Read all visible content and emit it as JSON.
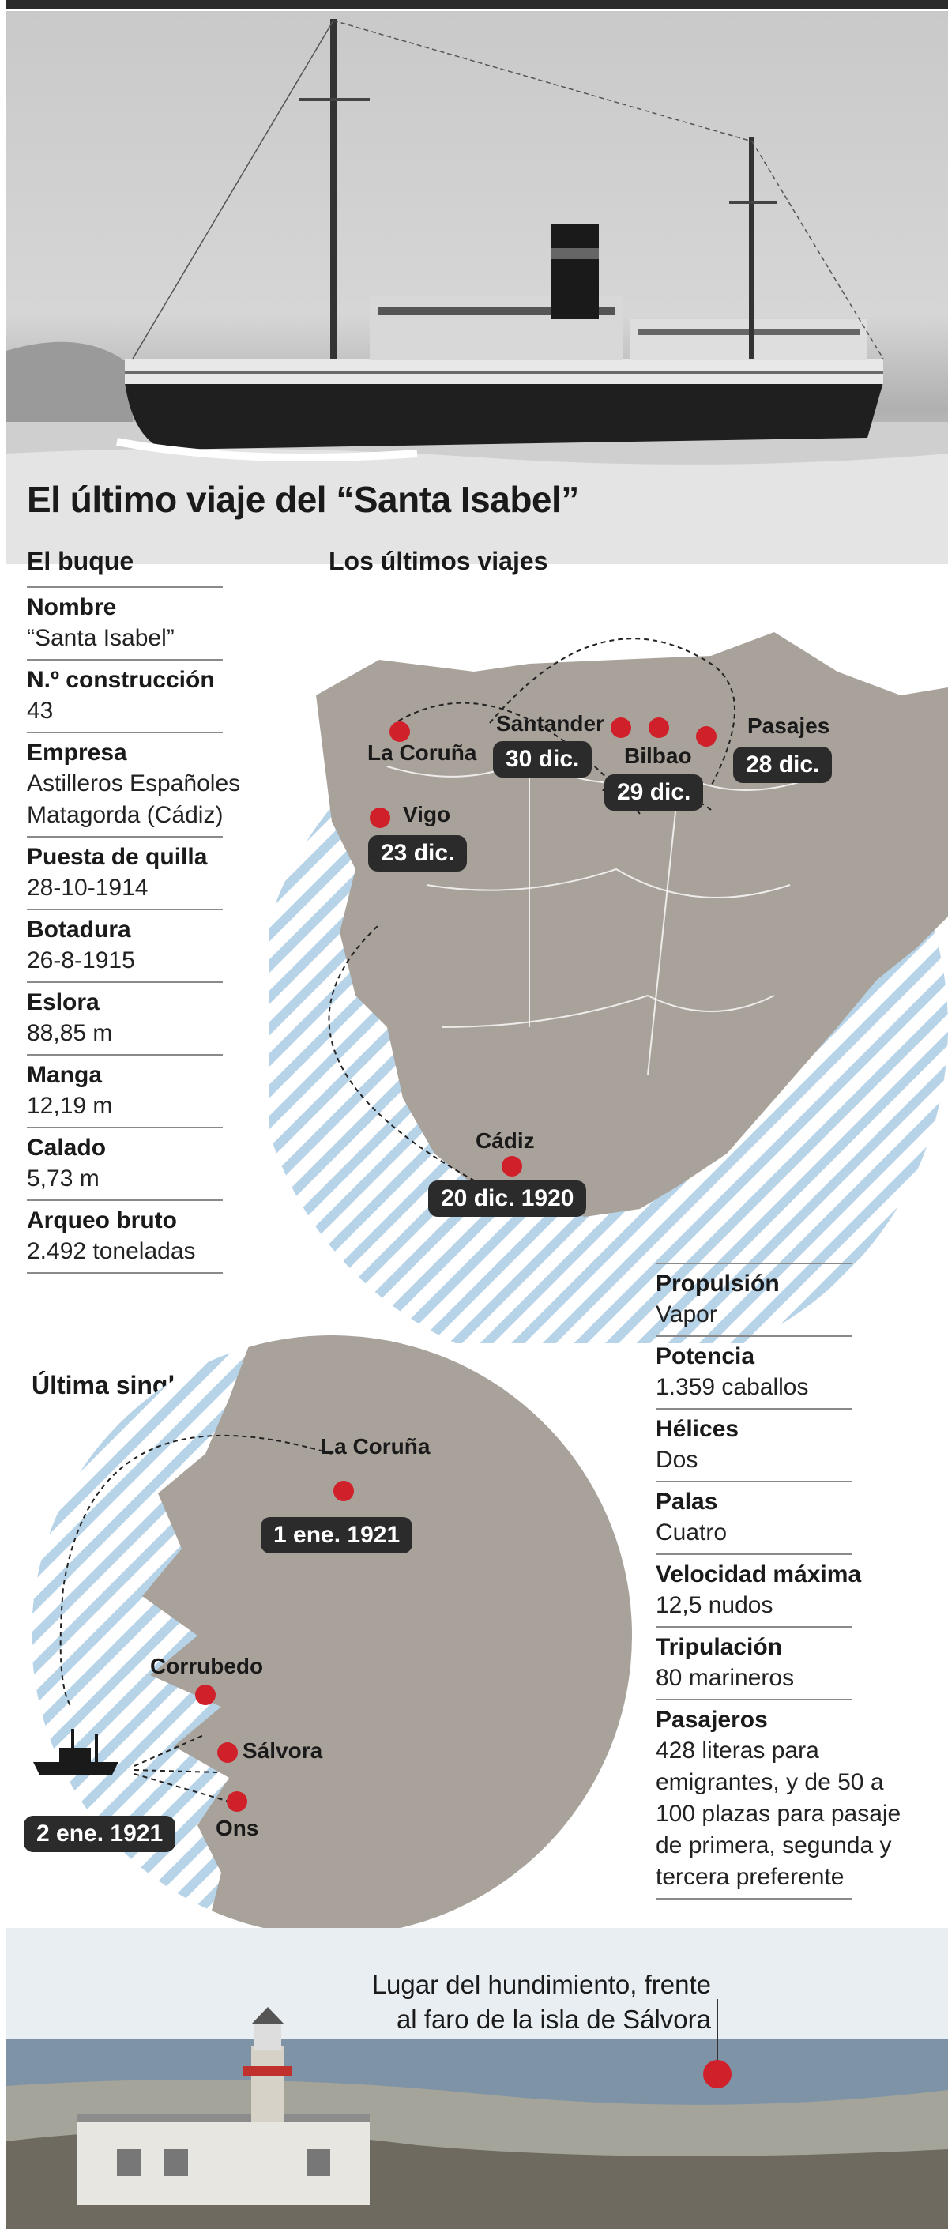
{
  "title": "El último viaje del “Santa Isabel”",
  "ship_section": {
    "heading": "El buque"
  },
  "ship_specs": [
    {
      "label": "Nombre",
      "value": "“Santa Isabel”"
    },
    {
      "label": "N.º construcción",
      "value": "43"
    },
    {
      "label": "Empresa",
      "value": "Astilleros Españoles",
      "value2": "Matagorda (Cádiz)"
    },
    {
      "label": "Puesta de quilla",
      "value": "28-10-1914"
    },
    {
      "label": "Botadura",
      "value": "26-8-1915"
    },
    {
      "label": "Eslora",
      "value": "88,85 m"
    },
    {
      "label": "Manga",
      "value": "12,19 m"
    },
    {
      "label": "Calado",
      "value": "5,73 m"
    },
    {
      "label": "Arqueo bruto",
      "value": "2.492 toneladas"
    }
  ],
  "ship_specs2": [
    {
      "label": "Propulsión",
      "value": "Vapor"
    },
    {
      "label": "Potencia",
      "value": "1.359 caballos"
    },
    {
      "label": "Hélices",
      "value": "Dos"
    },
    {
      "label": "Palas",
      "value": "Cuatro"
    },
    {
      "label": "Velocidad máxima",
      "value": "12,5 nudos"
    },
    {
      "label": "Tripulación",
      "value": "80 marineros"
    },
    {
      "label": "Pasajeros",
      "lines": [
        "428 literas para",
        "emigrantes, y de 50 a",
        "100 plazas para pasaje",
        "de primera, segunda y",
        "tercera preferente"
      ]
    }
  ],
  "last_trips": {
    "heading": "Los últimos viajes",
    "ports": [
      {
        "name": "La Coruña",
        "date": ""
      },
      {
        "name": "Santander",
        "date": "30 dic."
      },
      {
        "name": "Bilbao",
        "date": "29 dic."
      },
      {
        "name": "Pasajes",
        "date": "28 dic."
      },
      {
        "name": "Vigo",
        "date": "23 dic."
      },
      {
        "name": "Cádiz",
        "date": "20 dic. 1920"
      }
    ]
  },
  "last_voyage": {
    "heading": "Última singladura",
    "ports": [
      {
        "name": "La Coruña",
        "date": "1 ene. 1921"
      },
      {
        "name": "Corrubedo"
      },
      {
        "name": "Sálvora"
      },
      {
        "name": "Ons"
      }
    ],
    "ship_date": "2 ene. 1921"
  },
  "wreck_note": {
    "line1": "Lugar del hundimiento, frente",
    "line2": "al faro de la isla de Sálvora"
  },
  "colors": {
    "marker": "#d0202a",
    "pill": "#2b2b2b",
    "sea_stripe": "#b7d3e8",
    "land": "#a9a29a"
  }
}
